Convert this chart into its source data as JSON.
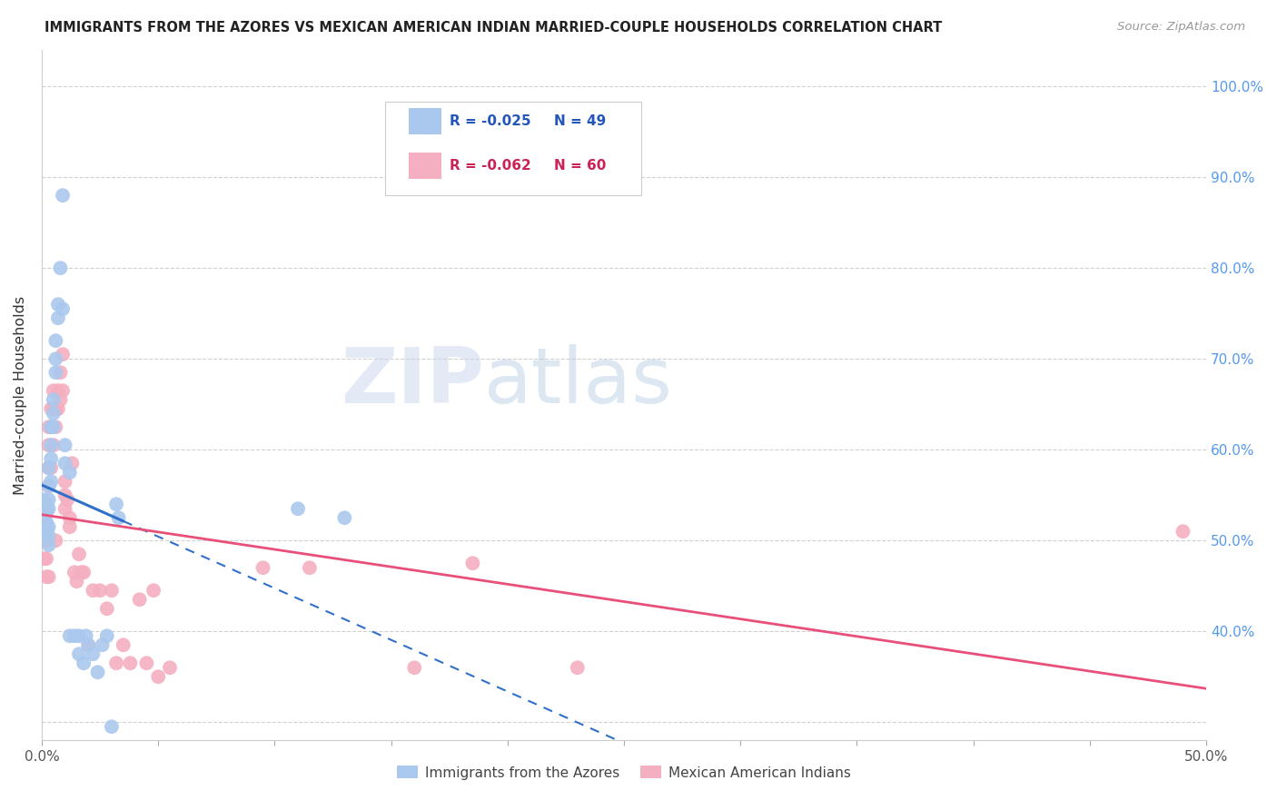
{
  "title": "IMMIGRANTS FROM THE AZORES VS MEXICAN AMERICAN INDIAN MARRIED-COUPLE HOUSEHOLDS CORRELATION CHART",
  "source": "Source: ZipAtlas.com",
  "xlim": [
    0.0,
    0.5
  ],
  "ylim": [
    0.28,
    1.04
  ],
  "ylabel": "Married-couple Households",
  "blue_label": "Immigrants from the Azores",
  "pink_label": "Mexican American Indians",
  "legend_R_blue": "-0.025",
  "legend_N_blue": "49",
  "legend_R_pink": "-0.062",
  "legend_N_pink": "60",
  "blue_color": "#aac8ed",
  "pink_color": "#f4afc0",
  "blue_line_color": "#3070c8",
  "pink_line_color": "#e8507a",
  "blue_x": [
    0.001,
    0.001,
    0.001,
    0.002,
    0.002,
    0.002,
    0.002,
    0.002,
    0.003,
    0.003,
    0.003,
    0.003,
    0.003,
    0.003,
    0.003,
    0.004,
    0.004,
    0.004,
    0.004,
    0.005,
    0.005,
    0.005,
    0.006,
    0.006,
    0.006,
    0.007,
    0.007,
    0.008,
    0.009,
    0.009,
    0.01,
    0.01,
    0.012,
    0.012,
    0.014,
    0.016,
    0.016,
    0.018,
    0.019,
    0.02,
    0.022,
    0.024,
    0.026,
    0.028,
    0.03,
    0.032,
    0.033,
    0.11,
    0.13
  ],
  "blue_y": [
    0.545,
    0.53,
    0.52,
    0.54,
    0.535,
    0.52,
    0.515,
    0.505,
    0.58,
    0.56,
    0.545,
    0.535,
    0.515,
    0.505,
    0.495,
    0.625,
    0.605,
    0.59,
    0.565,
    0.655,
    0.64,
    0.625,
    0.72,
    0.7,
    0.685,
    0.76,
    0.745,
    0.8,
    0.88,
    0.755,
    0.605,
    0.585,
    0.575,
    0.395,
    0.395,
    0.395,
    0.375,
    0.365,
    0.395,
    0.385,
    0.375,
    0.355,
    0.385,
    0.395,
    0.295,
    0.54,
    0.525,
    0.535,
    0.525
  ],
  "pink_x": [
    0.001,
    0.001,
    0.001,
    0.001,
    0.002,
    0.002,
    0.002,
    0.002,
    0.002,
    0.003,
    0.003,
    0.003,
    0.003,
    0.003,
    0.004,
    0.004,
    0.004,
    0.005,
    0.005,
    0.005,
    0.006,
    0.006,
    0.006,
    0.007,
    0.007,
    0.008,
    0.008,
    0.009,
    0.009,
    0.01,
    0.01,
    0.01,
    0.011,
    0.012,
    0.012,
    0.013,
    0.014,
    0.015,
    0.016,
    0.017,
    0.018,
    0.02,
    0.022,
    0.025,
    0.028,
    0.03,
    0.032,
    0.035,
    0.038,
    0.042,
    0.045,
    0.048,
    0.05,
    0.055,
    0.095,
    0.115,
    0.16,
    0.185,
    0.23,
    0.49
  ],
  "pink_y": [
    0.54,
    0.525,
    0.51,
    0.48,
    0.53,
    0.51,
    0.5,
    0.48,
    0.46,
    0.625,
    0.605,
    0.58,
    0.56,
    0.46,
    0.645,
    0.625,
    0.58,
    0.665,
    0.645,
    0.605,
    0.645,
    0.625,
    0.5,
    0.665,
    0.645,
    0.685,
    0.655,
    0.705,
    0.665,
    0.565,
    0.55,
    0.535,
    0.545,
    0.525,
    0.515,
    0.585,
    0.465,
    0.455,
    0.485,
    0.465,
    0.465,
    0.385,
    0.445,
    0.445,
    0.425,
    0.445,
    0.365,
    0.385,
    0.365,
    0.435,
    0.365,
    0.445,
    0.35,
    0.36,
    0.47,
    0.47,
    0.36,
    0.475,
    0.36,
    0.51
  ],
  "watermark_zip": "ZIP",
  "watermark_atlas": "atlas",
  "background_color": "#ffffff",
  "grid_color": "#d0d0d0",
  "ytick_vals": [
    0.3,
    0.4,
    0.5,
    0.6,
    0.7,
    0.8,
    0.9,
    1.0
  ],
  "ytick_labels_right": [
    "",
    "40.0%",
    "50.0%",
    "60.0%",
    "70.0%",
    "80.0%",
    "90.0%",
    "100.0%"
  ],
  "xtick_vals": [
    0.0,
    0.05,
    0.1,
    0.15,
    0.2,
    0.25,
    0.3,
    0.35,
    0.4,
    0.45,
    0.5
  ],
  "xtick_labels": [
    "0.0%",
    "",
    "",
    "",
    "",
    "",
    "",
    "",
    "",
    "",
    "50.0%"
  ]
}
